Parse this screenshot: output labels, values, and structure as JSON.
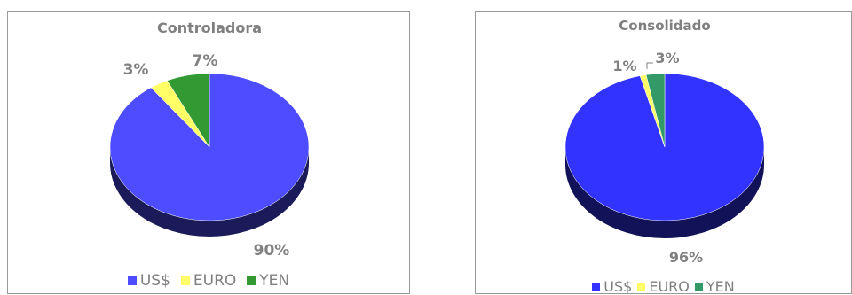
{
  "chart_data": [
    {
      "type": "pie",
      "title": "Controladora",
      "categories": [
        "US$",
        "EURO",
        "YEN"
      ],
      "values": [
        90,
        3,
        7
      ],
      "labels": [
        "90%",
        "3%",
        "7%"
      ],
      "colors": [
        "#4d4dff",
        "#ffff66",
        "#339933"
      ],
      "legend": "bottom"
    },
    {
      "type": "pie",
      "title": "Consolidado",
      "categories": [
        "US$",
        "EURO",
        "YEN"
      ],
      "values": [
        96,
        1,
        3
      ],
      "labels": [
        "96%",
        "1%",
        "3%"
      ],
      "colors": [
        "#3333ff",
        "#ffff66",
        "#339966"
      ],
      "legend": "bottom"
    }
  ]
}
